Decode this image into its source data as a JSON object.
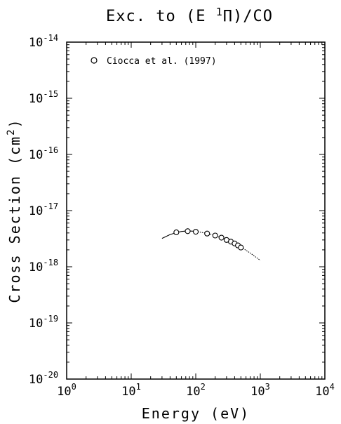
{
  "chart_data": {
    "type": "scatter",
    "title_prefix": "Exc. to (E ",
    "title_superscript": "1",
    "title_symbol": "Π",
    "title_suffix": ")/CO",
    "xlabel": "Energy (eV)",
    "ylabel_main": "Cross Section (cm",
    "ylabel_superscript": "2",
    "ylabel_close": ")",
    "x_scale": "log",
    "y_scale": "log",
    "xlim": [
      1,
      10000
    ],
    "ylim": [
      1e-20,
      1e-14
    ],
    "x_ticks": [
      {
        "value": 1,
        "base": "10",
        "exp": "0"
      },
      {
        "value": 10,
        "base": "10",
        "exp": "1"
      },
      {
        "value": 100,
        "base": "10",
        "exp": "2"
      },
      {
        "value": 1000,
        "base": "10",
        "exp": "3"
      },
      {
        "value": 10000,
        "base": "10",
        "exp": "4"
      }
    ],
    "y_ticks": [
      {
        "value": 1e-20,
        "base": "10",
        "exp": "-20"
      },
      {
        "value": 1e-19,
        "base": "10",
        "exp": "-19"
      },
      {
        "value": 1e-18,
        "base": "10",
        "exp": "-18"
      },
      {
        "value": 1e-17,
        "base": "10",
        "exp": "-17"
      },
      {
        "value": 1e-16,
        "base": "10",
        "exp": "-16"
      },
      {
        "value": 1e-15,
        "base": "10",
        "exp": "-15"
      },
      {
        "value": 1e-14,
        "base": "10",
        "exp": "-14"
      }
    ],
    "legend": {
      "label": "Ciocca et al. (1997)",
      "marker": "circle",
      "placement": "top-left"
    },
    "series": [
      {
        "name": "Ciocca et al. (1997)",
        "kind": "points",
        "marker": "circle",
        "x": [
          50,
          75,
          100,
          150,
          200,
          250,
          300,
          350,
          400,
          450,
          500
        ],
        "y": [
          4.1e-18,
          4.3e-18,
          4.2e-18,
          3.9e-18,
          3.6e-18,
          3.3e-18,
          3e-18,
          2.8e-18,
          2.6e-18,
          2.4e-18,
          2.2e-18
        ]
      },
      {
        "kind": "line",
        "style": "solid",
        "x": [
          30,
          40,
          50,
          60,
          75,
          90,
          100
        ],
        "y": [
          3.2e-18,
          3.75e-18,
          4.05e-18,
          4.25e-18,
          4.35e-18,
          4.3e-18,
          4.25e-18
        ]
      },
      {
        "kind": "line",
        "style": "dotted",
        "x": [
          100,
          150,
          200,
          250,
          300,
          400,
          500,
          700,
          1000
        ],
        "y": [
          4.25e-18,
          3.95e-18,
          3.6e-18,
          3.3e-18,
          3.05e-18,
          2.6e-18,
          2.25e-18,
          1.75e-18,
          1.3e-18
        ]
      }
    ]
  }
}
